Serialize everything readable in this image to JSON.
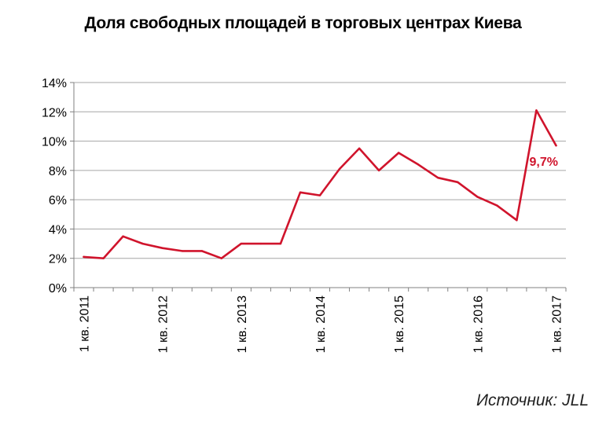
{
  "chart_data": {
    "type": "line",
    "title": "Доля свободных площадей в торговых центрах Киева",
    "xlabel": "",
    "ylabel": "",
    "ylim": [
      0,
      14
    ],
    "yticks": [
      0,
      2,
      4,
      6,
      8,
      10,
      12,
      14
    ],
    "ytick_labels": [
      "0%",
      "2%",
      "4%",
      "6%",
      "8%",
      "10%",
      "12%",
      "14%"
    ],
    "grid": true,
    "x_labels": [
      {
        "label": "1 кв. 2011",
        "index": 0
      },
      {
        "label": "1 кв. 2012",
        "index": 4
      },
      {
        "label": "1 кв. 2013",
        "index": 8
      },
      {
        "label": "1 кв. 2014",
        "index": 12
      },
      {
        "label": "1 кв. 2015",
        "index": 16
      },
      {
        "label": "1 кв. 2016",
        "index": 20
      },
      {
        "label": "1 кв. 2017",
        "index": 24
      }
    ],
    "series": [
      {
        "color": "#d0142c",
        "values": [
          2.1,
          2.0,
          3.5,
          3.0,
          2.7,
          2.5,
          2.5,
          2.0,
          3.0,
          3.0,
          3.0,
          6.5,
          6.3,
          8.1,
          9.5,
          8.0,
          9.2,
          8.4,
          7.5,
          7.2,
          6.2,
          5.6,
          4.6,
          12.1,
          9.7
        ]
      }
    ],
    "annotation": {
      "text": "9,7%",
      "index": 24
    }
  },
  "source": "Источник: JLL"
}
